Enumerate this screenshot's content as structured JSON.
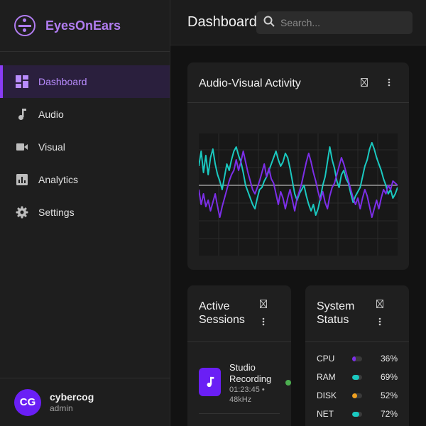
{
  "app": {
    "name": "EyesOnEars"
  },
  "sidebar": {
    "items": [
      {
        "label": "Dashboard",
        "icon": "dashboard-icon",
        "active": true
      },
      {
        "label": "Audio",
        "icon": "music-note-icon",
        "active": false
      },
      {
        "label": "Visual",
        "icon": "videocam-icon",
        "active": false
      },
      {
        "label": "Analytics",
        "icon": "analytics-icon",
        "active": false
      },
      {
        "label": "Settings",
        "icon": "gear-icon",
        "active": false
      }
    ]
  },
  "user": {
    "initials": "CG",
    "name": "cybercog",
    "role": "admin"
  },
  "header": {
    "title": "Dashboard",
    "search_placeholder": "Search..."
  },
  "activity_card": {
    "title": "Audio-Visual Activity",
    "icons": [
      "fullscreen-icon",
      "more-vert-icon"
    ]
  },
  "sessions_card": {
    "title": "Active Sessions",
    "sessions": [
      {
        "title": "Studio Recording",
        "meta": "01:23:45 • 48kHz",
        "icon": "music-note-icon",
        "status_color": "#4caf50"
      }
    ]
  },
  "system_card": {
    "title": "System Status",
    "stats": [
      {
        "label": "CPU",
        "value": "36%",
        "fraction": 0.36,
        "color": "#7c2ee8"
      },
      {
        "label": "RAM",
        "value": "69%",
        "fraction": 0.69,
        "color": "#1ac9c0"
      },
      {
        "label": "DISK",
        "value": "52%",
        "fraction": 0.52,
        "color": "#f0a020"
      },
      {
        "label": "NET",
        "value": "72%",
        "fraction": 0.72,
        "color": "#1ac9c0"
      }
    ]
  },
  "colors": {
    "accent": "#8a3cf5",
    "brand": "#b07cf0",
    "teal": "#1ac9c0",
    "purple_wave": "#7c2ee8"
  },
  "chart_data": {
    "type": "line",
    "title": "Audio-Visual Activity",
    "grid": true,
    "series": [
      {
        "color": "#1ac9c0",
        "values": [
          0.45,
          0.8,
          0.3,
          0.7,
          0.25,
          0.65,
          0.85,
          0.5,
          0.25,
          0.1,
          -0.1,
          0.2,
          0.5,
          0.35,
          0.6,
          0.8,
          0.9,
          0.7,
          0.55,
          0.3,
          0.0,
          -0.15,
          -0.3,
          -0.45,
          -0.55,
          -0.3,
          -0.1,
          -0.05,
          0.1,
          0.2,
          0.35,
          0.5,
          0.65,
          0.8,
          0.6,
          0.45,
          0.55,
          0.75,
          0.65,
          0.4,
          0.1,
          -0.2,
          -0.35,
          -0.2,
          -0.1,
          0.0,
          -0.25,
          -0.45,
          -0.6,
          -0.45,
          -0.7,
          -0.55,
          -0.3,
          0.0,
          0.2,
          0.55,
          0.9,
          0.6,
          0.4,
          0.1,
          -0.05,
          0.25,
          0.35,
          0.15,
          0.05,
          -0.2,
          -0.4,
          -0.25,
          -0.15,
          -0.05,
          0.2,
          0.45,
          0.6,
          0.85,
          1.0,
          0.85,
          0.65,
          0.5,
          0.35,
          0.15,
          0.0,
          -0.2,
          -0.1,
          -0.3,
          -0.2,
          -0.05
        ]
      },
      {
        "color": "#7c2ee8",
        "values": [
          -0.1,
          -0.45,
          -0.2,
          -0.5,
          -0.35,
          -0.6,
          -0.4,
          -0.2,
          -0.5,
          -0.75,
          -0.5,
          -0.3,
          -0.1,
          0.1,
          0.25,
          0.35,
          0.6,
          0.35,
          0.55,
          0.8,
          0.55,
          0.3,
          0.1,
          -0.1,
          -0.2,
          -0.05,
          0.1,
          0.3,
          0.5,
          0.2,
          0.4,
          0.15,
          0.05,
          -0.2,
          -0.45,
          -0.15,
          -0.3,
          -0.55,
          -0.3,
          -0.1,
          -0.35,
          -0.6,
          -0.3,
          -0.15,
          0.05,
          0.3,
          0.55,
          0.75,
          0.55,
          0.3,
          0.1,
          -0.15,
          -0.35,
          -0.15,
          -0.4,
          -0.55,
          -0.25,
          -0.05,
          0.05,
          0.25,
          0.45,
          0.65,
          0.5,
          0.3,
          0.1,
          -0.1,
          -0.3,
          -0.45,
          -0.3,
          -0.55,
          -0.3,
          -0.1,
          -0.25,
          -0.5,
          -0.75,
          -0.55,
          -0.35,
          -0.55,
          -0.3,
          -0.1,
          -0.2,
          0.0,
          -0.1,
          0.1,
          0.05,
          0.0
        ]
      }
    ]
  }
}
